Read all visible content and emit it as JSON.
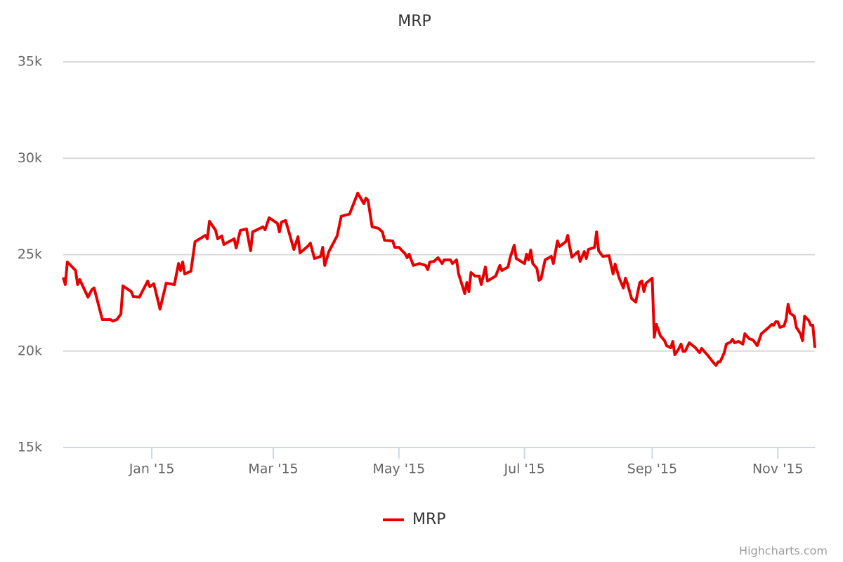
{
  "chart_data": {
    "type": "line",
    "title": "MRP",
    "x": [
      -43,
      -42,
      -41,
      -37,
      -36,
      -35,
      -31,
      -29,
      -28,
      -24,
      -20,
      -19,
      -17,
      -15,
      -14,
      -10,
      -9,
      -6,
      -2,
      -1,
      1,
      4,
      7,
      11,
      13,
      14,
      15,
      16,
      19,
      21,
      26,
      27,
      28,
      31,
      32,
      34,
      35,
      40,
      41,
      43,
      46,
      48,
      49,
      54,
      55,
      57,
      61,
      62,
      63,
      65,
      69,
      71,
      72,
      76,
      77,
      79,
      82,
      83,
      84,
      86,
      90,
      92,
      96,
      98,
      100,
      103,
      104,
      105,
      107,
      110,
      112,
      113,
      117,
      118,
      120,
      123,
      124,
      125,
      127,
      130,
      133,
      134,
      135,
      137,
      139,
      141,
      142,
      145,
      146,
      148,
      149,
      152,
      153,
      154,
      155,
      157,
      159,
      160,
      162,
      163,
      167,
      169,
      170,
      173,
      174,
      176,
      177,
      181,
      182,
      183,
      184,
      185,
      187,
      188,
      189,
      191,
      194,
      195,
      197,
      198,
      201,
      202,
      203,
      204,
      207,
      208,
      210,
      211,
      212,
      215,
      216,
      217,
      219,
      222,
      224,
      225,
      227,
      229,
      230,
      231,
      233,
      235,
      237,
      238,
      239,
      240,
      243,
      244,
      245,
      247,
      249,
      250,
      252,
      253,
      254,
      256,
      257,
      258,
      259,
      261,
      264,
      266,
      267,
      270,
      273,
      274,
      275,
      276,
      278,
      279,
      281,
      282,
      283,
      285,
      287,
      288,
      290,
      292,
      294,
      296,
      298,
      300,
      301,
      302,
      303,
      304,
      305,
      307,
      308,
      309,
      310,
      312,
      313,
      315,
      316,
      317,
      319,
      320,
      321,
      322
    ],
    "series": [
      {
        "name": "MRP",
        "color": "#e80000",
        "values": [
          23820,
          23450,
          24620,
          24180,
          23450,
          23710,
          22800,
          23200,
          23270,
          21630,
          21630,
          21560,
          21630,
          21920,
          23380,
          23090,
          22830,
          22800,
          23630,
          23340,
          23490,
          22180,
          23520,
          23450,
          24540,
          24180,
          24620,
          24000,
          24140,
          25670,
          26000,
          25820,
          26730,
          26260,
          25820,
          25970,
          25530,
          25820,
          25350,
          26260,
          26330,
          25200,
          26180,
          26440,
          26290,
          26910,
          26620,
          26180,
          26690,
          26770,
          25270,
          25930,
          25090,
          25460,
          25600,
          24800,
          24910,
          25380,
          24440,
          25160,
          25970,
          26990,
          27100,
          27640,
          28190,
          27640,
          27930,
          27820,
          26440,
          26370,
          26180,
          25750,
          25710,
          25380,
          25380,
          25050,
          24840,
          25020,
          24440,
          24540,
          24440,
          24220,
          24620,
          24650,
          24840,
          24540,
          24730,
          24730,
          24540,
          24730,
          24000,
          22980,
          23560,
          23090,
          24070,
          23890,
          23890,
          23450,
          24360,
          23630,
          23890,
          24440,
          24180,
          24360,
          24840,
          25490,
          24800,
          24540,
          25020,
          24730,
          25240,
          24540,
          24290,
          23670,
          23740,
          24730,
          24910,
          24540,
          25710,
          25420,
          25670,
          26000,
          25380,
          24870,
          25160,
          24650,
          25160,
          24800,
          25270,
          25380,
          26180,
          25200,
          24910,
          24950,
          24000,
          24510,
          23780,
          23270,
          23780,
          23490,
          22720,
          22540,
          23560,
          23630,
          23090,
          23520,
          23780,
          20720,
          21380,
          20790,
          20540,
          20280,
          20170,
          20500,
          19810,
          20140,
          20360,
          19990,
          19990,
          20430,
          20170,
          19920,
          20140,
          19770,
          19370,
          19260,
          19440,
          19440,
          19920,
          20360,
          20460,
          20610,
          20430,
          20500,
          20360,
          20900,
          20650,
          20570,
          20280,
          20900,
          21080,
          21270,
          21380,
          21340,
          21520,
          21520,
          21230,
          21300,
          21630,
          22430,
          21960,
          21810,
          21230,
          20900,
          20540,
          21810,
          21590,
          21340,
          21340,
          20170
        ]
      }
    ],
    "xlim": [
      -43,
      322
    ],
    "xticks": [
      {
        "value": 0,
        "label": "Jan '15"
      },
      {
        "value": 59,
        "label": "Mar '15"
      },
      {
        "value": 120,
        "label": "May '15"
      },
      {
        "value": 181,
        "label": "Jul '15"
      },
      {
        "value": 243,
        "label": "Sep '15"
      },
      {
        "value": 304,
        "label": "Nov '15"
      }
    ],
    "ylim": [
      15000,
      35000
    ],
    "yticks": [
      {
        "value": 15000,
        "label": "15k"
      },
      {
        "value": 20000,
        "label": "20k"
      },
      {
        "value": 25000,
        "label": "25k"
      },
      {
        "value": 30000,
        "label": "30k"
      },
      {
        "value": 35000,
        "label": "35k"
      }
    ],
    "grid": true,
    "credits": "Highcharts.com"
  }
}
